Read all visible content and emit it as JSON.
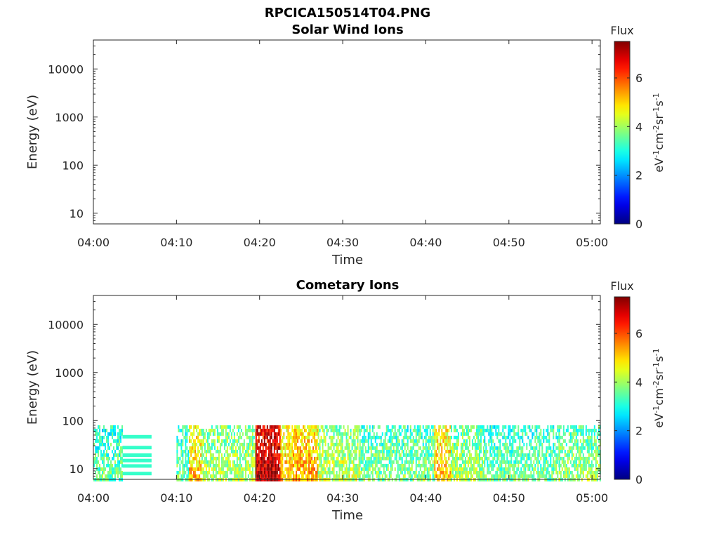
{
  "figure": {
    "title": "RPCICA150514T04.PNG"
  },
  "chart_data": [
    {
      "type": "heatmap",
      "title": "Solar Wind Ions",
      "xlabel": "Time",
      "ylabel": "Energy (eV)",
      "x_ticks": [
        "04:00",
        "04:10",
        "04:20",
        "04:30",
        "04:40",
        "04:50",
        "05:00"
      ],
      "xlim": [
        "04:00",
        "05:01"
      ],
      "y_scale": "log",
      "y_ticks": [
        10,
        100,
        1000,
        10000
      ],
      "y_tick_labels": [
        "10",
        "100",
        "1000",
        "10000"
      ],
      "ylim": [
        6,
        40000
      ],
      "colorbar": {
        "label": "Flux",
        "units": [
          "eV",
          "-1",
          "cm",
          "-2",
          "sr",
          "-1",
          "s",
          "-1"
        ],
        "ticks": [
          0,
          2,
          4,
          6
        ],
        "tick_labels": [
          "0",
          "2",
          "4",
          "6"
        ],
        "range": [
          0,
          7.5
        ],
        "colormap": "jet"
      },
      "intervals": []
    },
    {
      "type": "heatmap",
      "title": "Cometary Ions",
      "xlabel": "Time",
      "ylabel": "Energy (eV)",
      "x_ticks": [
        "04:00",
        "04:10",
        "04:20",
        "04:30",
        "04:40",
        "04:50",
        "05:00"
      ],
      "xlim": [
        "04:00",
        "05:01"
      ],
      "y_scale": "log",
      "y_ticks": [
        10,
        100,
        1000,
        10000
      ],
      "y_tick_labels": [
        "10",
        "100",
        "1000",
        "10000"
      ],
      "ylim": [
        6,
        40000
      ],
      "colorbar": {
        "label": "Flux",
        "units": [
          "eV",
          "-1",
          "cm",
          "-2",
          "sr",
          "-1",
          "s",
          "-1"
        ],
        "ticks": [
          0,
          2,
          4,
          6
        ],
        "tick_labels": [
          "0",
          "2",
          "4",
          "6"
        ],
        "range": [
          0,
          7.5
        ],
        "colormap": "jet"
      },
      "energy_max_ev": 80,
      "intervals": [
        {
          "start": "04:00",
          "end": "04:03.5",
          "mean_flux": 3.0
        },
        {
          "start": "04:03.5",
          "end": "04:07",
          "mean_flux": 3.2,
          "banded": true
        },
        {
          "start": "04:10",
          "end": "04:11.5",
          "mean_flux": 3.0
        },
        {
          "start": "04:11.5",
          "end": "04:13",
          "mean_flux": 4.6
        },
        {
          "start": "04:13",
          "end": "04:19.5",
          "mean_flux": 3.6
        },
        {
          "start": "04:19.5",
          "end": "04:22.5",
          "mean_flux": 6.5
        },
        {
          "start": "04:22.5",
          "end": "04:24",
          "mean_flux": 4.5
        },
        {
          "start": "04:24",
          "end": "04:27",
          "mean_flux": 4.8
        },
        {
          "start": "04:27",
          "end": "04:32",
          "mean_flux": 3.7
        },
        {
          "start": "04:32",
          "end": "04:41",
          "mean_flux": 3.2
        },
        {
          "start": "04:41",
          "end": "04:43",
          "mean_flux": 4.6
        },
        {
          "start": "04:43",
          "end": "04:47",
          "mean_flux": 3.5
        },
        {
          "start": "04:47",
          "end": "04:56",
          "mean_flux": 3.1
        },
        {
          "start": "04:56",
          "end": "05:01",
          "mean_flux": 3.4
        }
      ]
    }
  ]
}
